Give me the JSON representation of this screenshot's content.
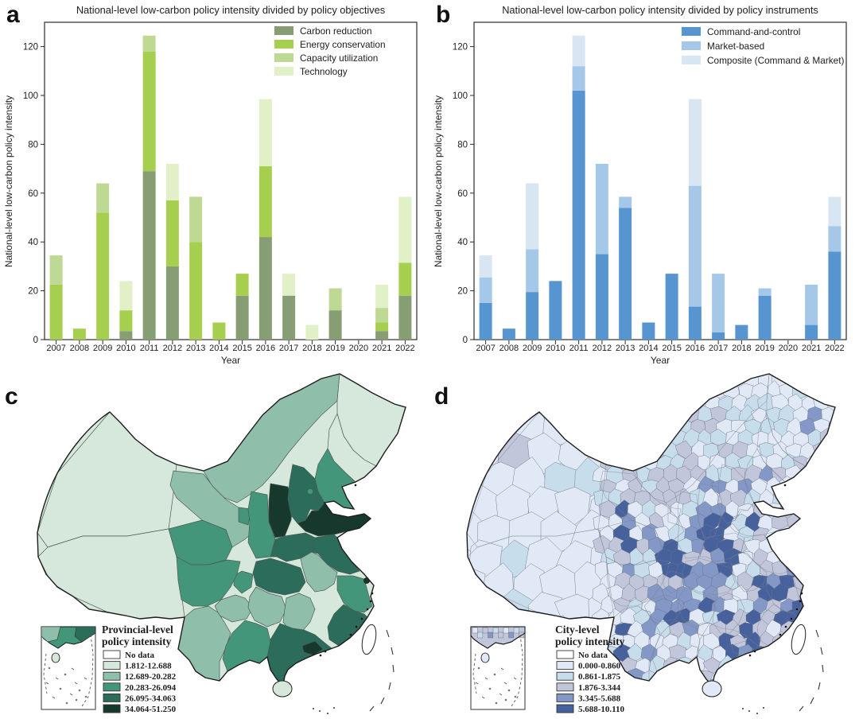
{
  "panel_letters": {
    "a": "a",
    "b": "b",
    "c": "c",
    "d": "d"
  },
  "chart_data": [
    {
      "panel": "a",
      "type": "bar",
      "stacked": true,
      "title": "National-level low-carbon policy intensity divided by policy objectives",
      "xlabel": "Year",
      "ylabel": "National-level low-carbon policy intensity",
      "ylim": [
        0,
        130
      ],
      "yticks": [
        0,
        20,
        40,
        60,
        80,
        100,
        120
      ],
      "grid": false,
      "legend_position": "upper right",
      "categories": [
        "2007",
        "2008",
        "2009",
        "2010",
        "2011",
        "2012",
        "2013",
        "2014",
        "2015",
        "2016",
        "2017",
        "2018",
        "2019",
        "2020",
        "2021",
        "2022"
      ],
      "series": [
        {
          "name": "Carbon reduction",
          "color": "#879d74",
          "values": [
            0,
            0,
            0,
            3.5,
            69,
            30,
            0,
            0,
            18,
            42,
            18,
            0,
            12,
            0,
            3.5,
            18
          ]
        },
        {
          "name": "Energy conservation",
          "color": "#a7cf4f",
          "values": [
            22.5,
            4.5,
            52,
            8.5,
            49,
            27,
            40,
            7,
            9,
            29,
            0,
            0,
            0,
            0,
            3.5,
            13.5
          ]
        },
        {
          "name": "Capacity utilization",
          "color": "#bdd994",
          "values": [
            12,
            0,
            12,
            0,
            6.5,
            0,
            18.5,
            0,
            0,
            0,
            0,
            0,
            9,
            0,
            6,
            0
          ]
        },
        {
          "name": "Technology",
          "color": "#e2f0c8",
          "values": [
            0,
            0,
            0,
            12,
            0,
            15,
            0,
            0,
            0,
            27.5,
            9,
            6,
            0,
            0,
            9.5,
            27
          ]
        }
      ]
    },
    {
      "panel": "b",
      "type": "bar",
      "stacked": true,
      "title": "National-level low-carbon policy intensity divided by policy instruments",
      "xlabel": "Year",
      "ylabel": "National-level low-carbon policy intensity",
      "ylim": [
        0,
        130
      ],
      "yticks": [
        0,
        20,
        40,
        60,
        80,
        100,
        120
      ],
      "grid": false,
      "legend_position": "upper right",
      "categories": [
        "2007",
        "2008",
        "2009",
        "2010",
        "2011",
        "2012",
        "2013",
        "2014",
        "2015",
        "2016",
        "2017",
        "2018",
        "2019",
        "2020",
        "2021",
        "2022"
      ],
      "series": [
        {
          "name": "Command-and-control",
          "color": "#5795d0",
          "values": [
            15,
            4.5,
            19.5,
            24,
            102,
            35,
            54,
            7,
            27,
            13.5,
            3,
            6,
            18,
            0,
            6,
            36
          ]
        },
        {
          "name": "Market-based",
          "color": "#a6c8e8",
          "values": [
            10.5,
            0,
            17.5,
            0,
            10,
            37,
            4.5,
            0,
            0,
            49.5,
            24,
            0,
            3,
            0,
            16.5,
            10.5
          ]
        },
        {
          "name": "Composite (Command & Market)",
          "color": "#d8e6f4",
          "values": [
            9,
            0,
            27,
            0,
            12.5,
            0,
            0,
            0,
            0,
            35.5,
            0,
            0,
            0,
            0,
            0,
            12
          ]
        }
      ]
    },
    {
      "panel": "c",
      "type": "choropleth_map",
      "region_level": "province",
      "legend_title_lines": [
        "Provincial-level",
        "policy intensity"
      ],
      "classes": [
        {
          "label": "No data",
          "color": "#ffffff"
        },
        {
          "label": "1.812-12.688",
          "color": "#d6e8dc"
        },
        {
          "label": "12.689-20.282",
          "color": "#8fbfab"
        },
        {
          "label": "20.283-26.094",
          "color": "#44967b"
        },
        {
          "label": "26.095-34.063",
          "color": "#2b6c5b"
        },
        {
          "label": "34.064-51.250",
          "color": "#17392d"
        }
      ],
      "regions": {
        "xinjiang": 1,
        "tibet": 1,
        "inner-mongolia": 2,
        "heilongjiang": 1,
        "jilin": 1,
        "gansu": 2,
        "qinghai": 3,
        "ningxia": 3,
        "shaanxi": 3,
        "shanxi": 5,
        "hebei": 4,
        "beijing": 3,
        "tianjin": 4,
        "shandong": 5,
        "henan": 4,
        "jiangsu": 4,
        "anhui": 2,
        "hubei": 4,
        "chongqing": 3,
        "sichuan": 3,
        "guizhou": 2,
        "yunnan": 2,
        "hunan": 2,
        "jiangxi": 2,
        "zhejiang": 3,
        "shanghai": 5,
        "fujian": 4,
        "guangdong": 4,
        "pearl-delta": 5,
        "guangxi": 3,
        "liaoning": 3,
        "hainan": 1,
        "taiwan": 0
      }
    },
    {
      "panel": "d",
      "type": "choropleth_map",
      "region_level": "city",
      "legend_title_lines": [
        "City-level",
        "policy intensity"
      ],
      "classes": [
        {
          "label": "No data",
          "color": "#ffffff"
        },
        {
          "label": "0.000-0.860",
          "color": "#e0e9f5"
        },
        {
          "label": "0.861-1.875",
          "color": "#c7ddec"
        },
        {
          "label": "1.876-3.344",
          "color": "#c2c6db"
        },
        {
          "label": "3.345-5.688",
          "color": "#8398c6"
        },
        {
          "label": "5.688-10.110",
          "color": "#47619c"
        }
      ]
    }
  ]
}
